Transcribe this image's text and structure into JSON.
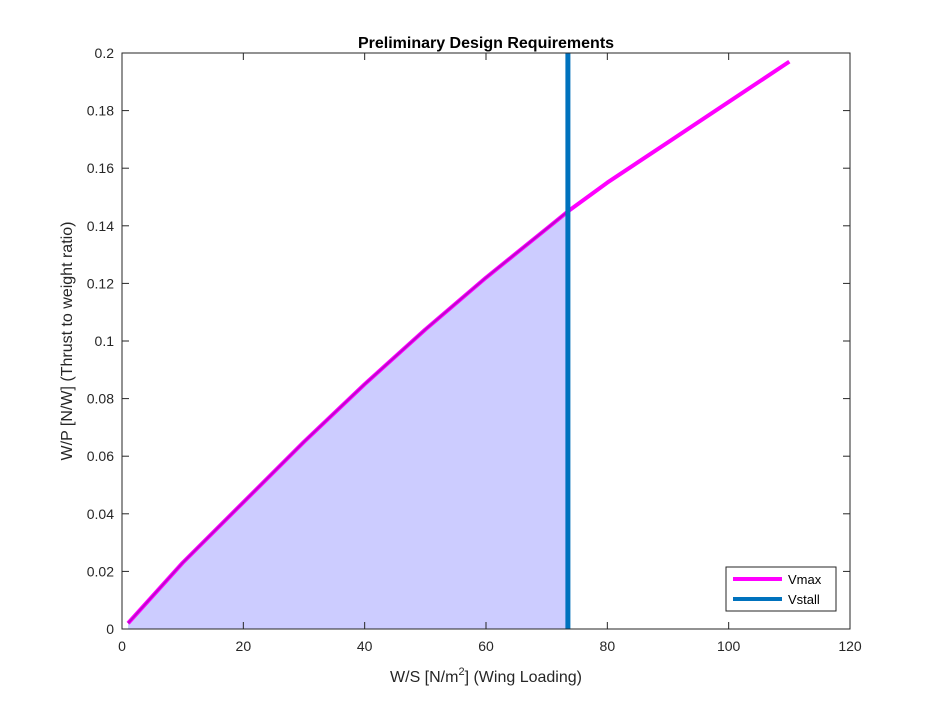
{
  "chart_data": {
    "type": "line",
    "title": "Preliminary Design Requirements",
    "xlabel_prefix": "W/S [N/m",
    "xlabel_sup": "2",
    "xlabel_suffix": "] (Wing Loading)",
    "ylabel": "W/P [N/W] (Thrust to weight ratio)",
    "xlim": [
      0,
      120
    ],
    "ylim": [
      0,
      0.2
    ],
    "xticks": [
      0,
      20,
      40,
      60,
      80,
      100,
      120
    ],
    "yticks": [
      0,
      0.02,
      0.04,
      0.06,
      0.08,
      0.1,
      0.12,
      0.14,
      0.16,
      0.18,
      0.2
    ],
    "grid": false,
    "legend_position": "bottom-right",
    "series": [
      {
        "name": "Vmax",
        "color": "#ff00ff",
        "x": [
          1,
          10,
          20,
          30,
          40,
          50,
          60,
          70,
          73.5,
          80,
          90,
          100,
          110
        ],
        "y": [
          0.002,
          0.023,
          0.044,
          0.065,
          0.085,
          0.104,
          0.122,
          0.139,
          0.145,
          0.155,
          0.169,
          0.183,
          0.197
        ]
      },
      {
        "name": "Vstall",
        "color": "#0072bd",
        "x": [
          73.5,
          73.5
        ],
        "y": [
          0,
          0.2
        ]
      }
    ],
    "feasible_region": {
      "color": "#ccccff",
      "x_min": 1,
      "x_max": 73.5,
      "bounded_by": "Vmax"
    }
  }
}
